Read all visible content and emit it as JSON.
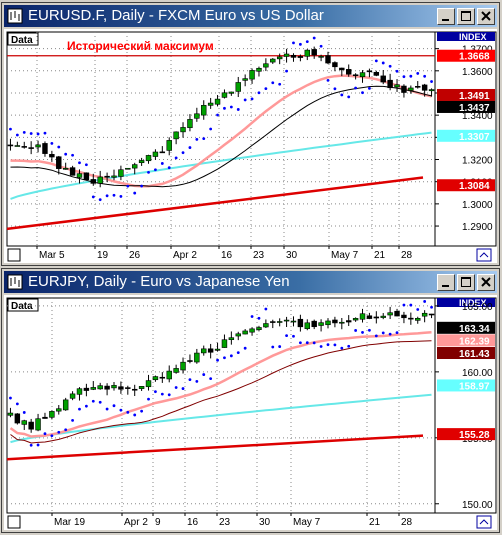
{
  "windows": [
    {
      "id": "eurusd",
      "title": "EURUSD.F, Daily - FXCM Euro vs US Dollar",
      "data_tab": "Data",
      "index_label": "INDEX",
      "annotation": "Исторический максимум",
      "chart_data": {
        "type": "candlestick",
        "y_range": [
          1.281,
          1.3775
        ],
        "y_ticks": [
          "1.3700",
          "1.3600",
          "1.3500",
          "1.3400",
          "1.3300",
          "1.3200",
          "1.3100",
          "1.3000",
          "1.2900"
        ],
        "x_labels": [
          "Mar 5",
          "19",
          "26",
          "Apr 2",
          "16",
          "23",
          "30",
          "May 7",
          "21",
          "28"
        ],
        "price_labels": [
          {
            "text": "1.3668",
            "value": 1.3668,
            "bg": "#ff0000",
            "fg": "#ffffff"
          },
          {
            "text": "1.3491",
            "value": 1.3491,
            "bg": "#c00000",
            "fg": "#ffffff"
          },
          {
            "text": "1.3437",
            "value": 1.3437,
            "bg": "#000000",
            "fg": "#ffffff"
          },
          {
            "text": "1.3307",
            "value": 1.3307,
            "bg": "#66ffff",
            "fg": "#ffffff"
          },
          {
            "text": "1.3084",
            "value": 1.3084,
            "bg": "#e00000",
            "fg": "#ffffff"
          }
        ],
        "resistance_level": 1.3668,
        "colors": {
          "up": "#00a000",
          "down": "#000000",
          "ma_fast": "#000000",
          "ma_mid": "#ff9999",
          "ma_slow": "#66e8e8",
          "ma_long": "#dd0000",
          "psar": "#0000ff",
          "level": "#cc0000"
        }
      }
    },
    {
      "id": "eurjpy",
      "title": "EURJPY, Daily - Euro vs Japanese Yen",
      "data_tab": "Data",
      "index_label": "INDEX",
      "annotation": "",
      "chart_data": {
        "type": "candlestick",
        "y_range": [
          149.3,
          165.6
        ],
        "y_ticks": [
          "165.00",
          "160.00",
          "155.00",
          "150.00"
        ],
        "x_labels": [
          "Mar 19",
          "Apr 2",
          "9",
          "16",
          "23",
          "30",
          "May 7",
          "21",
          "28"
        ],
        "price_labels": [
          {
            "text": "163.34",
            "value": 163.34,
            "bg": "#000000",
            "fg": "#ffffff"
          },
          {
            "text": "162.39",
            "value": 162.39,
            "bg": "#ff9999",
            "fg": "#ffffff"
          },
          {
            "text": "161.43",
            "value": 161.43,
            "bg": "#800000",
            "fg": "#ffffff"
          },
          {
            "text": "158.97",
            "value": 158.97,
            "bg": "#66ffff",
            "fg": "#ffffff"
          },
          {
            "text": "155.28",
            "value": 155.28,
            "bg": "#e00000",
            "fg": "#ffffff"
          }
        ],
        "colors": {
          "up": "#00a000",
          "down": "#000000",
          "ma_fast": "#800000",
          "ma_mid": "#ff9999",
          "ma_slow": "#66e8e8",
          "ma_long": "#dd0000",
          "psar": "#0000ff"
        }
      }
    }
  ]
}
